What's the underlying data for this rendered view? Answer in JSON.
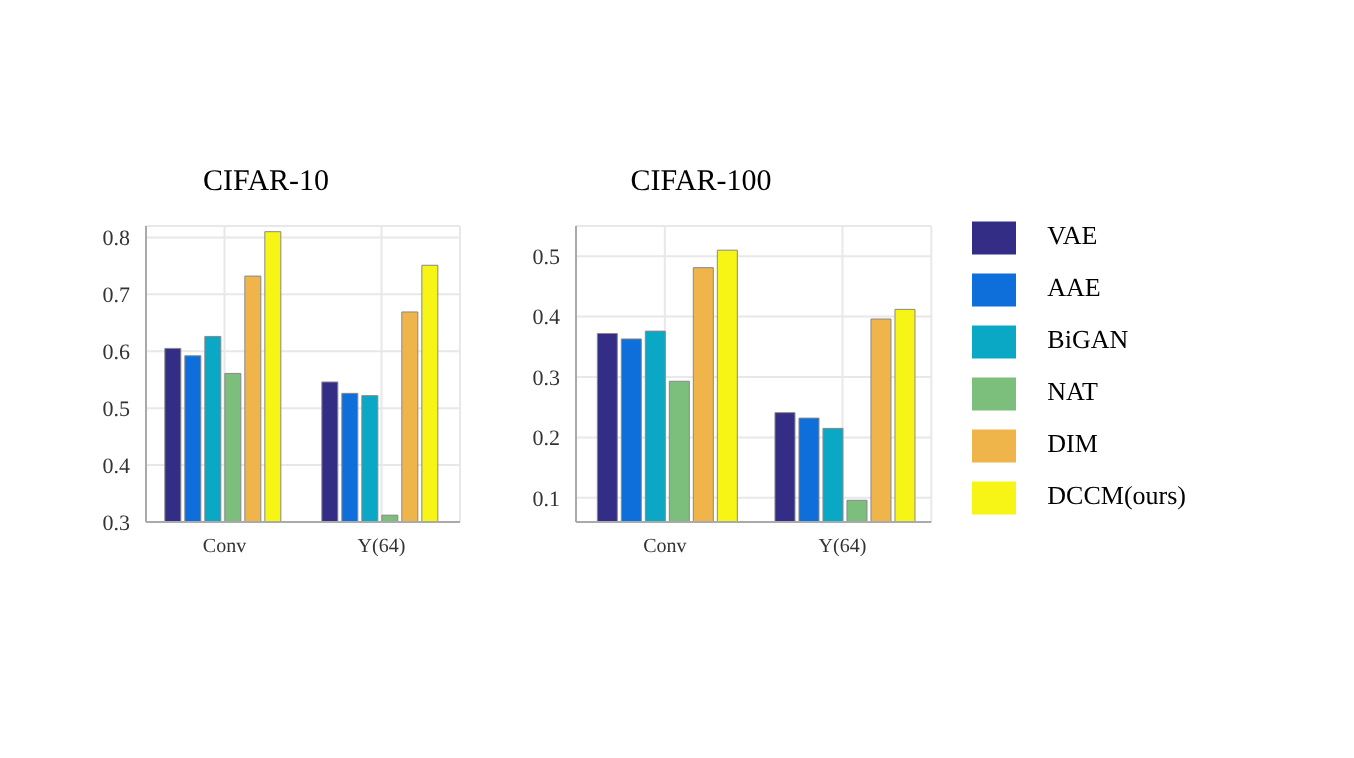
{
  "chart_data": [
    {
      "type": "bar",
      "title": "CIFAR-10",
      "categories": [
        "Conv",
        "Y(64)"
      ],
      "series": [
        {
          "color": "#332d85",
          "values": [
            0.605,
            0.546
          ]
        },
        {
          "color": "#0e6fdb",
          "values": [
            0.592,
            0.526
          ]
        },
        {
          "color": "#0aa8c4",
          "values": [
            0.626,
            0.522
          ]
        },
        {
          "color": "#7cbe7c",
          "values": [
            0.561,
            0.312
          ]
        },
        {
          "color": "#f0b54a",
          "values": [
            0.732,
            0.669
          ]
        },
        {
          "color": "#f6f516",
          "values": [
            0.81,
            0.751
          ]
        }
      ],
      "ylim": [
        0.3,
        0.82
      ],
      "yticks": [
        0.3,
        0.4,
        0.5,
        0.6,
        0.7,
        0.8
      ],
      "grid": true,
      "legend": false
    },
    {
      "type": "bar",
      "title": "CIFAR-100",
      "categories": [
        "Conv",
        "Y(64)"
      ],
      "series": [
        {
          "name": "VAE",
          "color": "#332d85",
          "values": [
            0.372,
            0.241
          ]
        },
        {
          "name": "AAE",
          "color": "#0e6fdb",
          "values": [
            0.363,
            0.232
          ]
        },
        {
          "name": "BiGAN",
          "color": "#0aa8c4",
          "values": [
            0.376,
            0.215
          ]
        },
        {
          "name": "NAT",
          "color": "#7cbe7c",
          "values": [
            0.293,
            0.096
          ]
        },
        {
          "name": "DIM",
          "color": "#f0b54a",
          "values": [
            0.481,
            0.396
          ]
        },
        {
          "name": "DCCM(ours)",
          "color": "#f6f516",
          "values": [
            0.51,
            0.412
          ]
        }
      ],
      "ylim": [
        0.06,
        0.55
      ],
      "yticks": [
        0.1,
        0.2,
        0.3,
        0.4,
        0.5
      ],
      "grid": true,
      "legend": "right"
    }
  ]
}
